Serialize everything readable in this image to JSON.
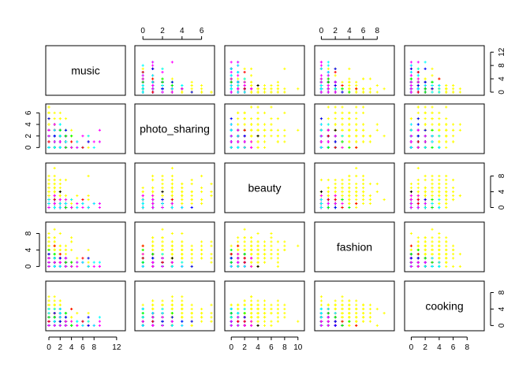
{
  "chart_data": {
    "type": "scatter",
    "plot_kind": "scatterplot-matrix",
    "variables": [
      {
        "name": "music",
        "range": [
          0,
          13
        ],
        "ticks": [
          0,
          2,
          4,
          6,
          8,
          10,
          12
        ],
        "x_ticks_shown": [
          0,
          2,
          4,
          6,
          8,
          12
        ],
        "y_ticks_shown": [
          0,
          4,
          8,
          12
        ],
        "max_count": 13
      },
      {
        "name": "photo_sharing",
        "range": [
          -0.5,
          7
        ],
        "ticks": [
          0,
          2,
          4,
          6
        ],
        "x_ticks_shown": [
          0,
          2,
          4,
          6
        ],
        "y_ticks_shown": [
          0,
          2,
          4,
          6
        ],
        "max_count": 7
      },
      {
        "name": "beauty",
        "range": [
          -0.5,
          10.5
        ],
        "ticks": [
          0,
          2,
          4,
          6,
          8,
          10
        ],
        "x_ticks_shown": [
          0,
          2,
          4,
          6,
          8,
          10
        ],
        "y_ticks_shown": [
          0,
          4,
          8
        ],
        "max_count": 10
      },
      {
        "name": "fashion",
        "range": [
          -0.5,
          10
        ],
        "ticks": [
          0,
          2,
          4,
          6,
          8
        ],
        "x_ticks_shown": [
          0,
          2,
          4,
          6,
          8
        ],
        "y_ticks_shown": [
          0,
          4,
          8
        ],
        "max_count": 9
      },
      {
        "name": "cooking",
        "range": [
          -0.5,
          10
        ],
        "ticks": [
          0,
          2,
          4,
          6,
          8
        ],
        "x_ticks_shown": [
          0,
          2,
          4,
          6,
          8
        ],
        "y_ticks_shown": [
          0,
          4,
          8
        ],
        "max_count": 9
      }
    ],
    "group_colors": [
      "#ffff00",
      "#ff00ff",
      "#0000ff",
      "#00ffff",
      "#00ff00",
      "#ff0000",
      "#000000",
      "#00008b"
    ],
    "group_weights": [
      0.42,
      0.2,
      0.12,
      0.1,
      0.05,
      0.07,
      0.02,
      0.02
    ],
    "point_symbol": "plus",
    "grid": false,
    "legend": "none"
  }
}
